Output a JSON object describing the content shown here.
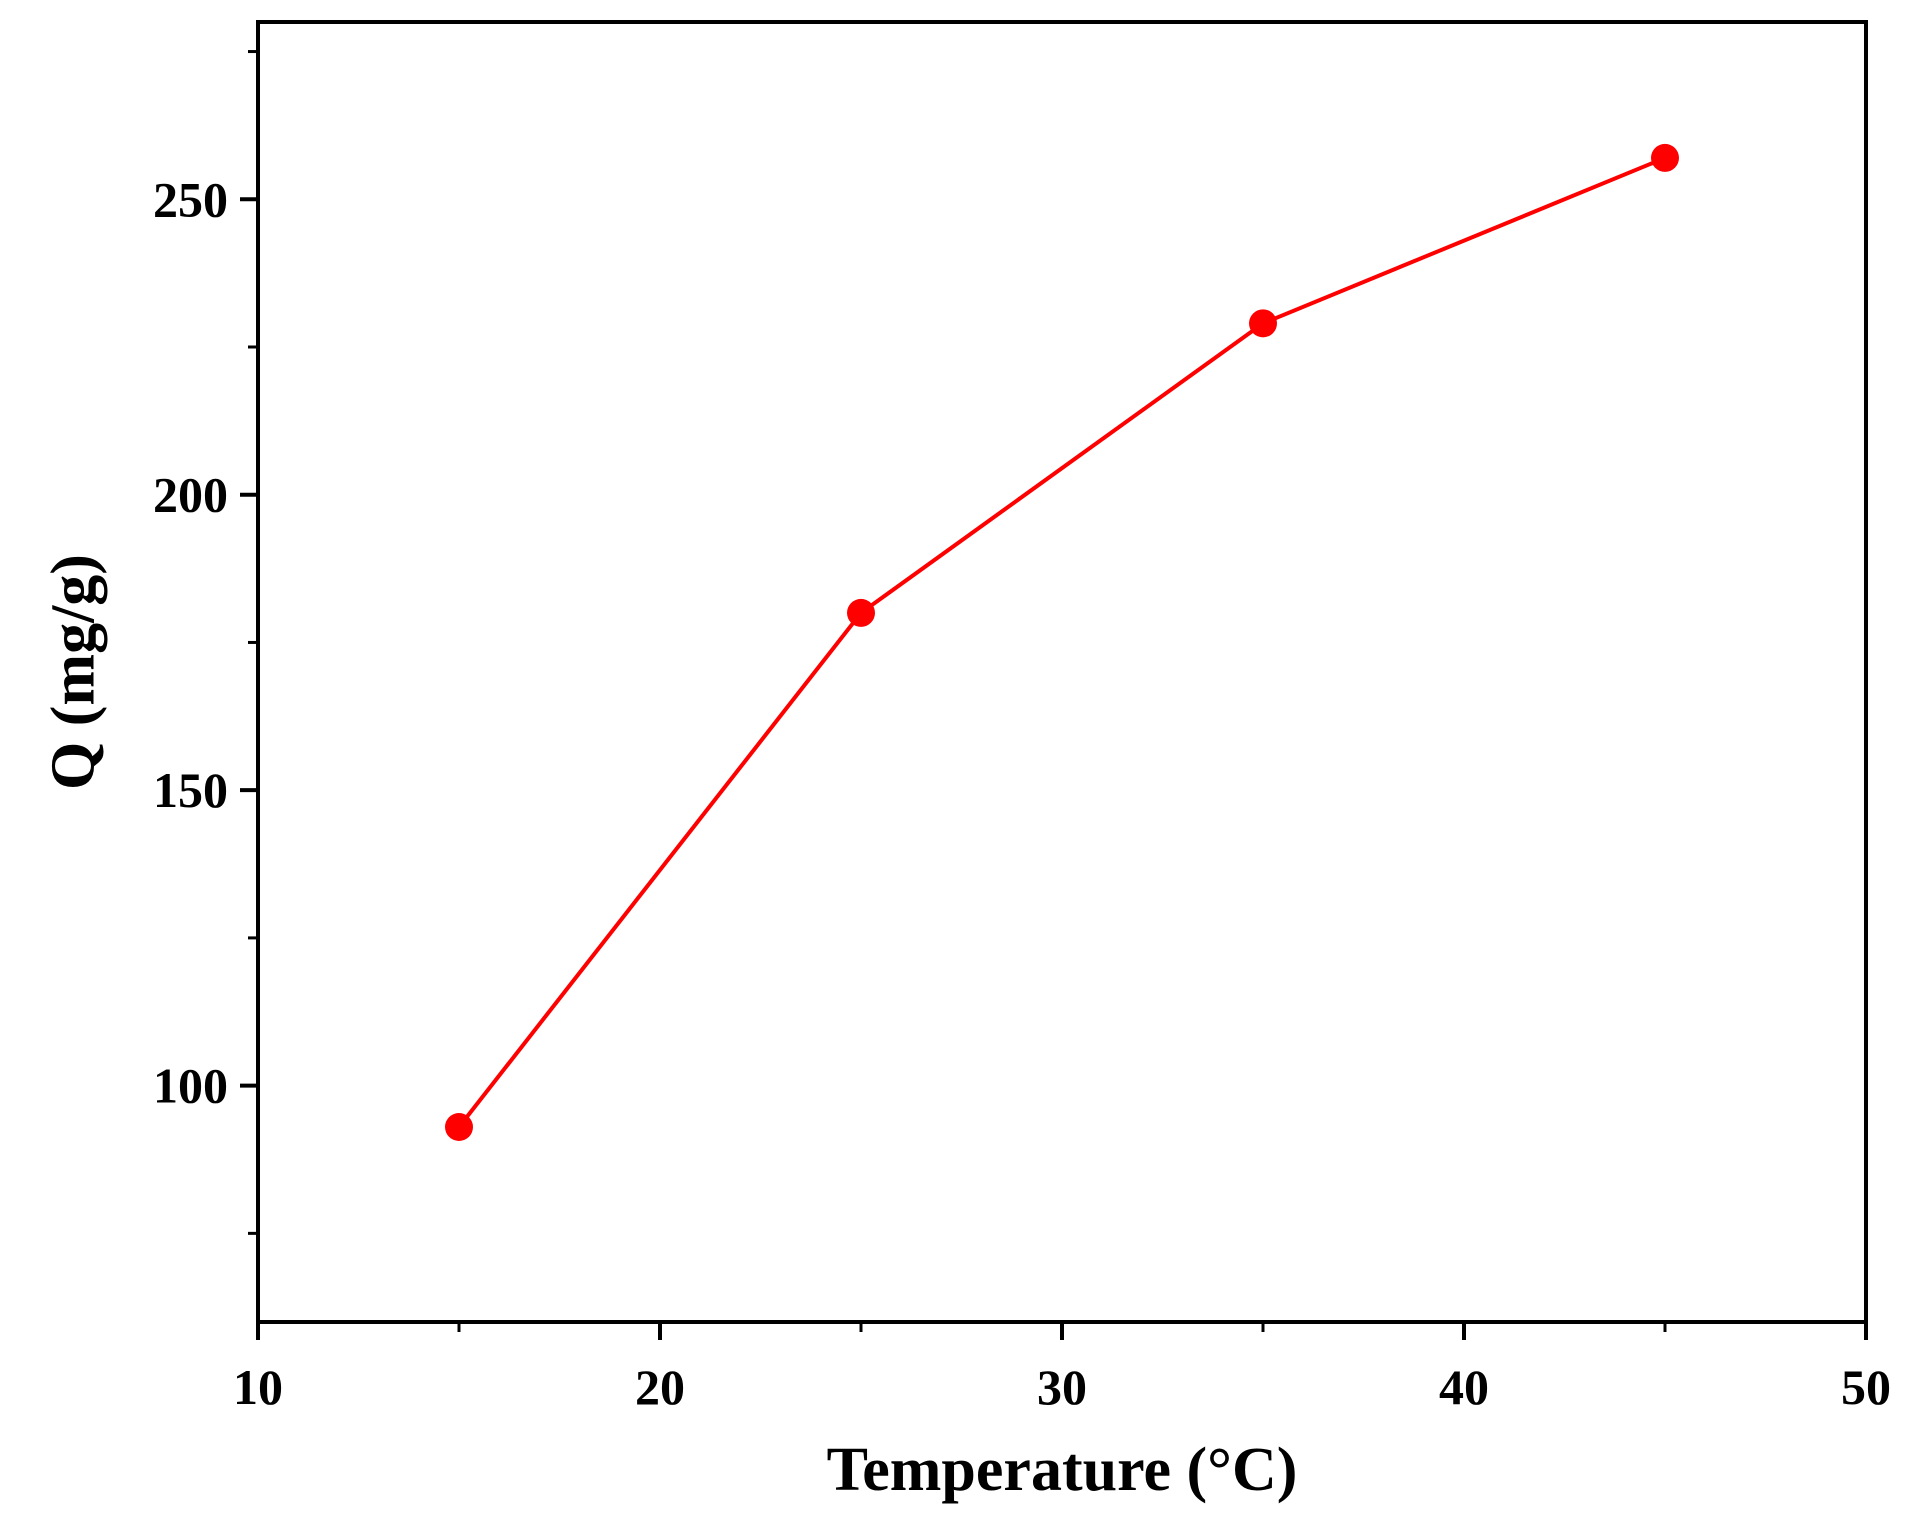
{
  "chart_data": {
    "type": "line",
    "title": "",
    "xlabel": "Temperature (°C)",
    "ylabel": "Q (mg/g)",
    "xlim": [
      10,
      50
    ],
    "ylim": [
      60,
      280
    ],
    "x_ticks": [
      10,
      20,
      30,
      40,
      50
    ],
    "x_tick_labels": [
      "10",
      "20",
      "30",
      "40",
      "50"
    ],
    "y_ticks": [
      100,
      150,
      200,
      250
    ],
    "y_tick_labels": [
      "100",
      "150",
      "200",
      "250"
    ],
    "y_minor_ticks": [
      75,
      125,
      175,
      225,
      275
    ],
    "x_minor_ticks": [
      15,
      25,
      35,
      45
    ],
    "grid": false,
    "legend": "none",
    "series": [
      {
        "color": "#ff0000",
        "marker": "circle",
        "x": [
          15,
          25,
          35,
          45
        ],
        "y": [
          93,
          180,
          229,
          257
        ]
      }
    ]
  }
}
